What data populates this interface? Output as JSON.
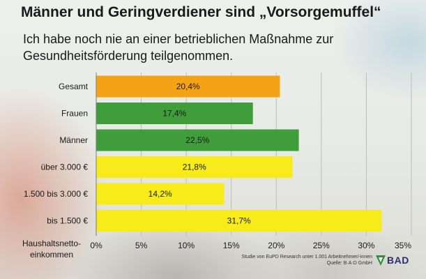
{
  "header": {
    "title": "Männer und Geringverdiener sind „Vorsorgemuffel“",
    "subtitle": "Ich habe noch nie an einer betrieblichen Maßnahme zur Gesundheitsförderung teilgenommen."
  },
  "chart_data": {
    "type": "bar",
    "orientation": "horizontal",
    "title": "Männer und Geringverdiener sind „Vorsorgemuffel“",
    "subtitle": "Ich habe noch nie an einer betrieblichen Maßnahme zur Gesundheitsförderung teilgenommen.",
    "xlabel": "Haushaltsnetto-einkommen",
    "ylabel": "",
    "categories": [
      "Gesamt",
      "Frauen",
      "Männer",
      "über 3.000 €",
      "1.500 bis 3.000 €",
      "bis 1.500 €"
    ],
    "values": [
      20.4,
      17.4,
      22.5,
      21.8,
      14.2,
      31.7
    ],
    "value_labels": [
      "20,4%",
      "17,4%",
      "22,5%",
      "21,8%",
      "14,2%",
      "31,7%"
    ],
    "bar_colors": [
      "#f5a316",
      "#3f9e3a",
      "#3f9e3a",
      "#f7ec1a",
      "#f7ec1a",
      "#f7ec1a"
    ],
    "xlim": [
      0,
      35
    ],
    "xticks": [
      0,
      5,
      10,
      15,
      20,
      25,
      30,
      35
    ],
    "xtick_labels": [
      "0%",
      "5%",
      "10%",
      "15%",
      "20%",
      "25%",
      "30%",
      "35%"
    ],
    "grid": "vertical",
    "legend": "none"
  },
  "axis": {
    "xlabel_line1": "Haushaltsnetto-",
    "xlabel_line2": "einkommen"
  },
  "source": {
    "line1": "Studie von EuPD Research unter 1.001 Arbeitnehmer/-innen",
    "line2": "Quelle: B·A·D GmbH"
  },
  "logo": {
    "text": "BAD",
    "color": "#2a2f6f",
    "accent": "#2f8f3a"
  }
}
